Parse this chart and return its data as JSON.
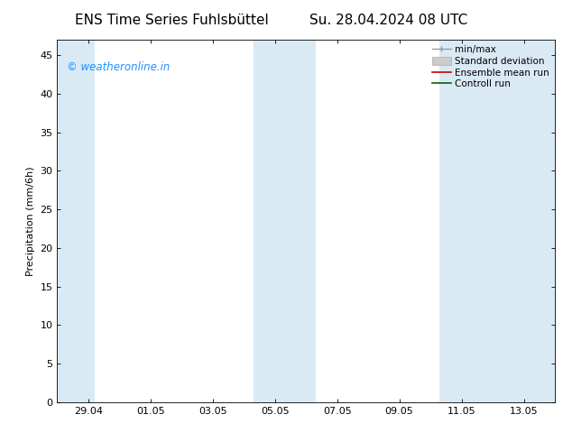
{
  "title_left": "ENS Time Series Fuhlsbüttel",
  "title_right": "Su. 28.04.2024 08 UTC",
  "ylabel": "Precipitation (mm/6h)",
  "xlim": [
    0,
    16
  ],
  "ylim": [
    0,
    47
  ],
  "yticks": [
    0,
    5,
    10,
    15,
    20,
    25,
    30,
    35,
    40,
    45
  ],
  "xtick_labels": [
    "29.04",
    "01.05",
    "03.05",
    "05.05",
    "07.05",
    "09.05",
    "11.05",
    "13.05"
  ],
  "xtick_positions": [
    1,
    3,
    5,
    7,
    9,
    11,
    13,
    15
  ],
  "shaded_bands": [
    {
      "x_start": -0.1,
      "x_end": 1.2
    },
    {
      "x_start": 6.3,
      "x_end": 8.3
    },
    {
      "x_start": 12.3,
      "x_end": 16.1
    }
  ],
  "shade_color": "#daeaf5",
  "legend_labels": [
    "min/max",
    "Standard deviation",
    "Ensemble mean run",
    "Controll run"
  ],
  "watermark_text": "© weatheronline.in",
  "watermark_color": "#1e90ff",
  "bg_color": "#ffffff",
  "title_fontsize": 11,
  "axis_fontsize": 8,
  "tick_fontsize": 8,
  "legend_fontsize": 7.5
}
